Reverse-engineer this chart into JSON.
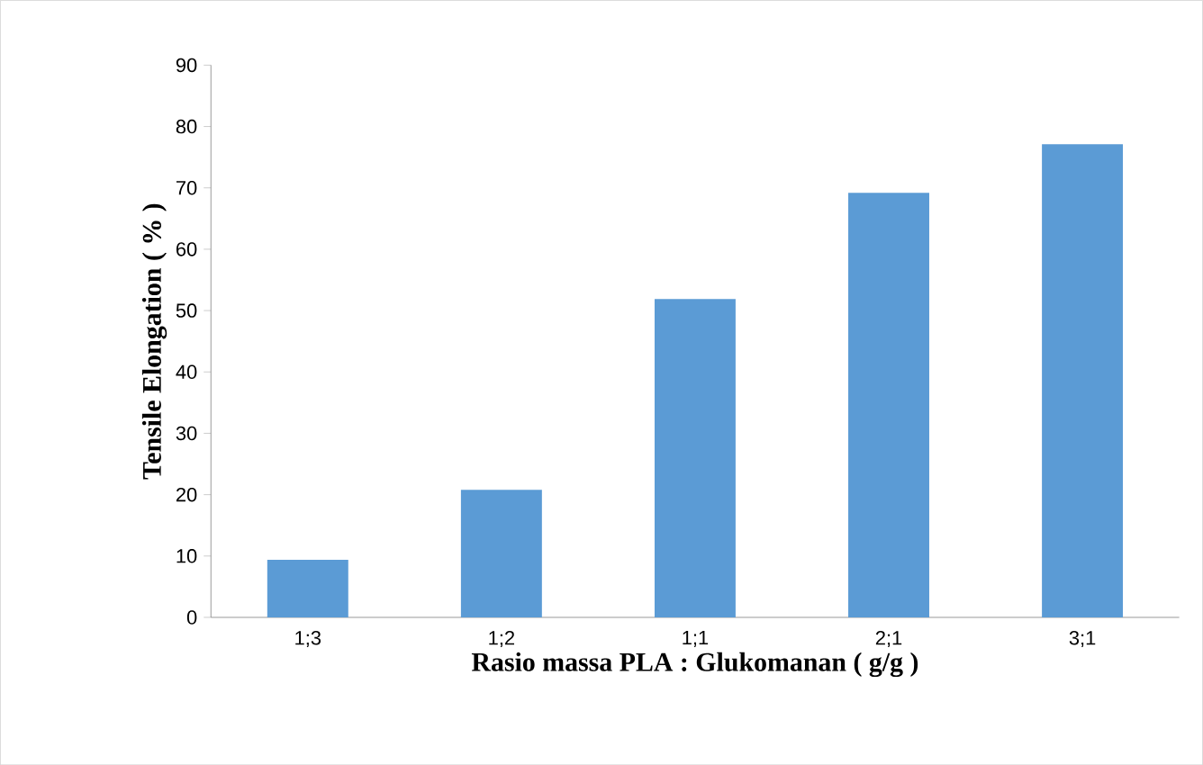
{
  "chart_data": {
    "type": "bar",
    "categories": [
      "1;3",
      "1;2",
      "1;1",
      "2;1",
      "3;1"
    ],
    "values": [
      9.4,
      20.8,
      51.9,
      69.2,
      77.1
    ],
    "color": "#5b9bd5",
    "xlabel": "Rasio massa PLA : Glukomanan ( g/g )",
    "ylabel": "Tensile Elongation  ( % )",
    "ylim": [
      0,
      90
    ],
    "yticks": [
      0,
      10,
      20,
      30,
      40,
      50,
      60,
      70,
      80,
      90
    ],
    "grid": false
  }
}
